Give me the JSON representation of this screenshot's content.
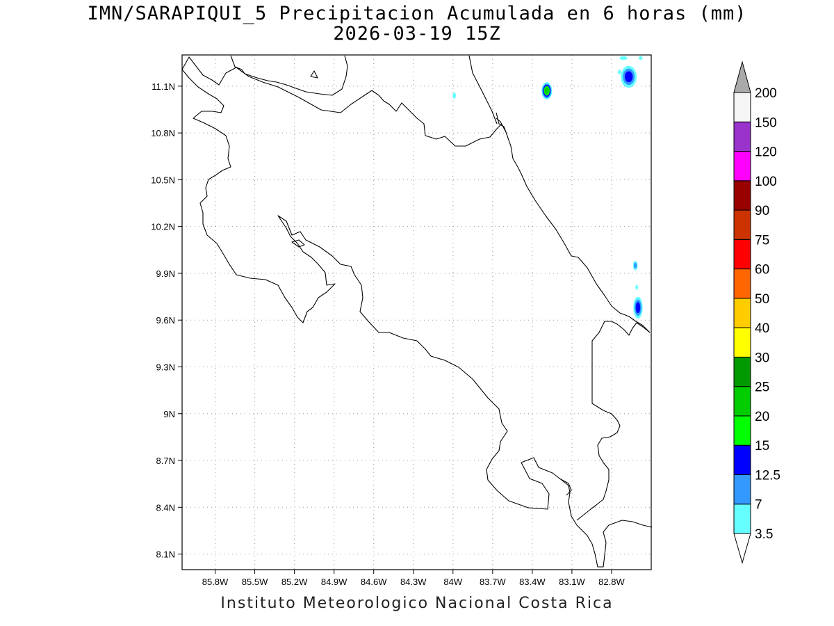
{
  "header": {
    "title": "IMN/SARAPIQUI_5 Precipitacion Acumulada en 6 horas (mm)",
    "subtitle": "2026-03-19 15Z"
  },
  "footer": {
    "credit": "Instituto Meteorologico Nacional Costa Rica"
  },
  "map": {
    "lon_range": [
      -86.05,
      -82.5
    ],
    "lat_range": [
      8.0,
      11.3
    ],
    "lon_ticks": [
      {
        "value": -85.8,
        "label": "85.8W"
      },
      {
        "value": -85.5,
        "label": "85.5W"
      },
      {
        "value": -85.2,
        "label": "85.2W"
      },
      {
        "value": -84.9,
        "label": "84.9W"
      },
      {
        "value": -84.6,
        "label": "84.6W"
      },
      {
        "value": -84.3,
        "label": "84.3W"
      },
      {
        "value": -84.0,
        "label": "84W"
      },
      {
        "value": -83.7,
        "label": "83.7W"
      },
      {
        "value": -83.4,
        "label": "83.4W"
      },
      {
        "value": -83.1,
        "label": "83.1W"
      },
      {
        "value": -82.8,
        "label": "82.8W"
      }
    ],
    "lat_ticks": [
      {
        "value": 11.1,
        "label": "11.1N"
      },
      {
        "value": 10.8,
        "label": "10.8N"
      },
      {
        "value": 10.5,
        "label": "10.5N"
      },
      {
        "value": 10.2,
        "label": "10.2N"
      },
      {
        "value": 9.9,
        "label": "9.9N"
      },
      {
        "value": 9.6,
        "label": "9.6N"
      },
      {
        "value": 9.3,
        "label": "9.3N"
      },
      {
        "value": 9.0,
        "label": "9N"
      },
      {
        "value": 8.7,
        "label": "8.7N"
      },
      {
        "value": 8.4,
        "label": "8.4N"
      },
      {
        "value": 8.1,
        "label": "8.1N"
      }
    ],
    "grid": "dotted",
    "precip_cells": [
      {
        "lon": -83.29,
        "lat": 11.07,
        "max_mm": 20,
        "rx": 0.04,
        "ry": 0.055
      },
      {
        "lon": -82.67,
        "lat": 11.16,
        "max_mm": 12.5,
        "rx": 0.06,
        "ry": 0.07
      },
      {
        "lon": -82.6,
        "lat": 9.68,
        "max_mm": 12.5,
        "rx": 0.035,
        "ry": 0.07
      },
      {
        "lon": -82.62,
        "lat": 9.95,
        "max_mm": 7,
        "rx": 0.018,
        "ry": 0.03
      },
      {
        "lon": -83.99,
        "lat": 11.04,
        "max_mm": 3.5,
        "rx": 0.012,
        "ry": 0.02
      },
      {
        "lon": -82.71,
        "lat": 11.28,
        "max_mm": 3.5,
        "rx": 0.03,
        "ry": 0.012
      },
      {
        "lon": -82.58,
        "lat": 11.28,
        "max_mm": 3.5,
        "rx": 0.015,
        "ry": 0.012
      },
      {
        "lon": -82.74,
        "lat": 11.19,
        "max_mm": 3.5,
        "rx": 0.012,
        "ry": 0.015
      },
      {
        "lon": -82.61,
        "lat": 9.81,
        "max_mm": 3.5,
        "rx": 0.01,
        "ry": 0.015
      }
    ]
  },
  "colorbar": {
    "levels": [
      {
        "label": "3.5",
        "color": "#66ffff"
      },
      {
        "label": "7",
        "color": "#3399ff"
      },
      {
        "label": "12.5",
        "color": "#0000ff"
      },
      {
        "label": "15",
        "color": "#00ff00"
      },
      {
        "label": "20",
        "color": "#00cc00"
      },
      {
        "label": "25",
        "color": "#009900"
      },
      {
        "label": "30",
        "color": "#ffff00"
      },
      {
        "label": "40",
        "color": "#ffcc00"
      },
      {
        "label": "50",
        "color": "#ff6600"
      },
      {
        "label": "60",
        "color": "#ff0000"
      },
      {
        "label": "75",
        "color": "#cc3300"
      },
      {
        "label": "90",
        "color": "#990000"
      },
      {
        "label": "100",
        "color": "#ff00ff"
      },
      {
        "label": "120",
        "color": "#9933cc"
      },
      {
        "label": "150",
        "color": "#f5f5f5"
      },
      {
        "label": "200",
        "color": "#aaaaaa"
      }
    ]
  }
}
